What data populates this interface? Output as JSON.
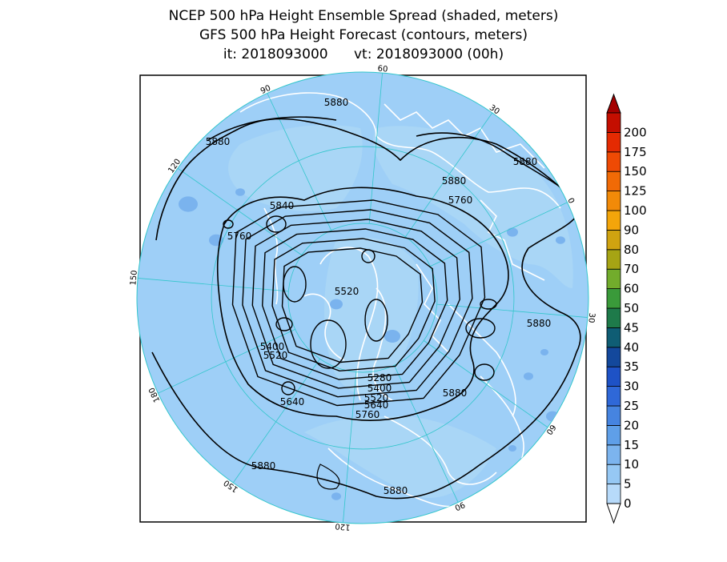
{
  "titles": {
    "line1": "NCEP 500 hPa Height Ensemble Spread (shaded, meters)",
    "line2": "GFS 500 hPa Height Forecast (contours, meters)",
    "line3": "it: 2018093000      vt: 2018093000 (00h)"
  },
  "colors": {
    "ocean_shade": "#9ecff7",
    "land_shade": "#a9d6f6",
    "patch_shade": "#7ab3ee",
    "coast": "#ffffff",
    "grid": "#33c6cc",
    "contour": "#000000"
  },
  "colorbar": {
    "levels": [
      "0",
      "5",
      "10",
      "15",
      "20",
      "25",
      "30",
      "35",
      "40",
      "45",
      "50",
      "60",
      "70",
      "80",
      "90",
      "100",
      "125",
      "150",
      "175",
      "200"
    ],
    "colors": [
      "#b7dafa",
      "#96c8f4",
      "#7cb4ee",
      "#5f9fe8",
      "#4684e0",
      "#2f68d8",
      "#1e52c6",
      "#13489c",
      "#0f5d74",
      "#1e7a4a",
      "#3a9a3a",
      "#72ac2c",
      "#a6a414",
      "#d0a310",
      "#f3a50a",
      "#f28a08",
      "#f16a06",
      "#ee4a04",
      "#e42a02",
      "#c40e00"
    ],
    "top_color": "#a40000"
  },
  "grid_labels": [
    "60",
    "30",
    "0",
    "30",
    "60",
    "90",
    "120",
    "150",
    "180",
    "150",
    "120",
    "90"
  ],
  "contour_labels": [
    {
      "text": "5880"
    },
    {
      "text": "5880"
    },
    {
      "text": "5880"
    },
    {
      "text": "5880"
    },
    {
      "text": "5880"
    },
    {
      "text": "5880"
    },
    {
      "text": "5880"
    },
    {
      "text": "5880"
    },
    {
      "text": "5840"
    },
    {
      "text": "5760"
    },
    {
      "text": "5760"
    },
    {
      "text": "5520"
    },
    {
      "text": "5400"
    },
    {
      "text": "5520"
    },
    {
      "text": "5640"
    },
    {
      "text": "5280"
    },
    {
      "text": "5400"
    },
    {
      "text": "5520"
    },
    {
      "text": "5640"
    },
    {
      "text": "5760"
    }
  ]
}
